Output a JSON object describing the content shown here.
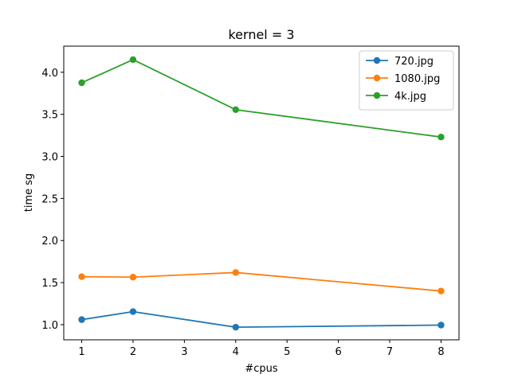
{
  "chart_data": {
    "type": "line",
    "title": "kernel = 3",
    "xlabel": "#cpus",
    "ylabel": "time sg",
    "x": [
      1,
      2,
      4,
      8
    ],
    "xlim": [
      0.65,
      8.35
    ],
    "ylim": [
      0.82,
      4.31
    ],
    "xticks": [
      1,
      2,
      3,
      4,
      5,
      6,
      7,
      8
    ],
    "yticks": [
      1.0,
      1.5,
      2.0,
      2.5,
      3.0,
      3.5,
      4.0
    ],
    "ytick_labels": [
      "1.0",
      "1.5",
      "2.0",
      "2.5",
      "3.0",
      "3.5",
      "4.0"
    ],
    "grid": false,
    "legend_position": "top-right",
    "series": [
      {
        "name": "720.jpg",
        "values": [
          1.06,
          1.155,
          0.97,
          0.995
        ],
        "color": "#1f77b4"
      },
      {
        "name": "1080.jpg",
        "values": [
          1.57,
          1.565,
          1.62,
          1.4
        ],
        "color": "#ff7f0e"
      },
      {
        "name": "4k.jpg",
        "values": [
          3.875,
          4.15,
          3.555,
          3.23
        ],
        "color": "#2ca02c"
      }
    ]
  }
}
